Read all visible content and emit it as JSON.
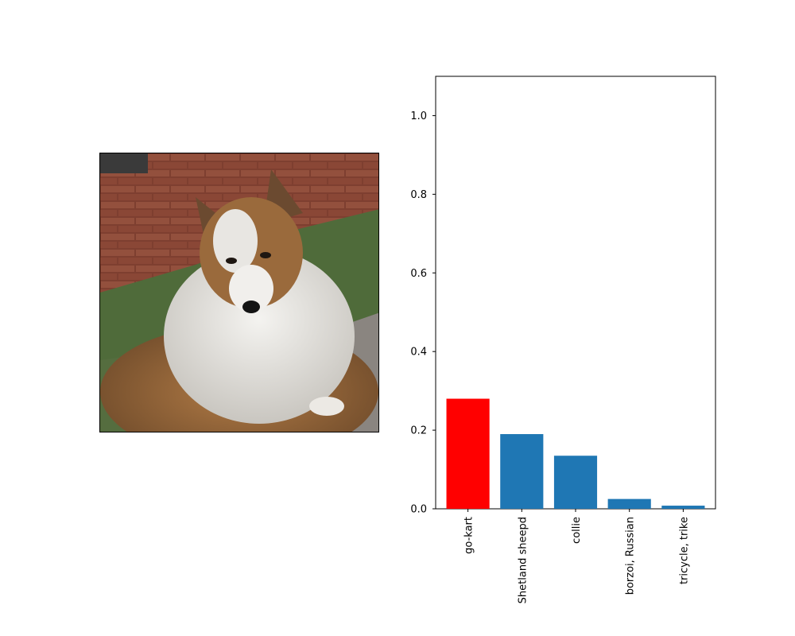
{
  "photo": {
    "subject": "shetland-sheepdog-photo",
    "colors": {
      "brick": "#8c4a3a",
      "grass": "#4f6b3a",
      "gravel": "#8a8580",
      "fur_tan": "#9a6a3c",
      "fur_white": "#e8e6e2"
    }
  },
  "chart_data": {
    "type": "bar",
    "categories": [
      "go-kart",
      "Shetland sheepd",
      "collie",
      "borzoi, Russian",
      "tricycle, trike"
    ],
    "values": [
      0.28,
      0.19,
      0.135,
      0.025,
      0.008
    ],
    "bar_colors": [
      "#ff0000",
      "#1f77b4",
      "#1f77b4",
      "#1f77b4",
      "#1f77b4"
    ],
    "ylim": [
      0,
      1.1
    ],
    "yticks": [
      0.0,
      0.2,
      0.4,
      0.6,
      0.8,
      1.0
    ],
    "ytick_labels": [
      "0.0",
      "0.2",
      "0.4",
      "0.6",
      "0.8",
      "1.0"
    ],
    "grid": false,
    "title": "",
    "xlabel": "",
    "ylabel": ""
  }
}
